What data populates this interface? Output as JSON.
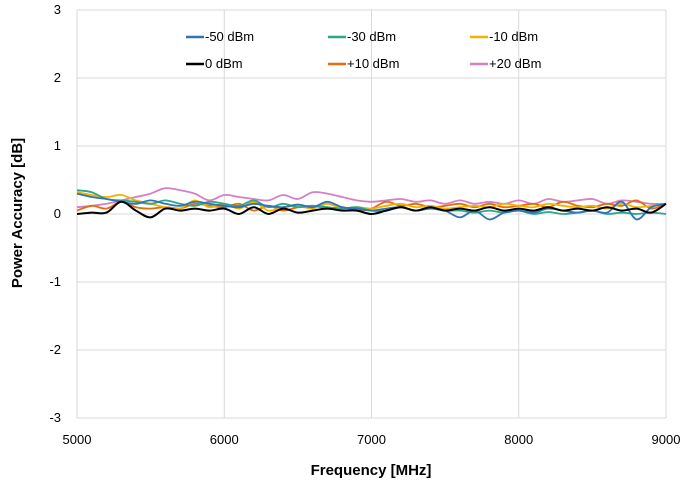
{
  "chart_data": {
    "type": "line",
    "xlabel": "Frequency [MHz]",
    "ylabel": "Power Accuracy [dB]",
    "xlim": [
      5000,
      9000
    ],
    "ylim": [
      -3,
      3
    ],
    "x_ticks": [
      "5000",
      "6000",
      "7000",
      "8000",
      "9000"
    ],
    "y_ticks": [
      "3",
      "2",
      "1",
      "0",
      "-1",
      "-2",
      "-3"
    ],
    "x_tick_values": [
      5000,
      6000,
      7000,
      8000,
      9000
    ],
    "y_tick_values": [
      3,
      2,
      1,
      0,
      -1,
      -2,
      -3
    ],
    "grid": {
      "x": true,
      "y": true
    },
    "legend_position": "top",
    "x": [
      5000,
      5100,
      5200,
      5300,
      5400,
      5500,
      5600,
      5700,
      5800,
      5900,
      6000,
      6100,
      6200,
      6300,
      6400,
      6500,
      6600,
      6700,
      6800,
      6900,
      7000,
      7100,
      7200,
      7300,
      7400,
      7500,
      7600,
      7700,
      7800,
      7900,
      8000,
      8100,
      8200,
      8300,
      8400,
      8500,
      8600,
      8700,
      8800,
      8900,
      9000
    ],
    "series": [
      {
        "name": "-50 dBm",
        "color": "#2e75b6",
        "values": [
          0.3,
          0.25,
          0.22,
          0.18,
          0.15,
          0.2,
          0.15,
          0.12,
          0.18,
          0.15,
          0.12,
          0.1,
          0.15,
          0.12,
          0.1,
          0.14,
          0.1,
          0.18,
          0.1,
          0.08,
          0.05,
          0.08,
          0.1,
          0.05,
          0.08,
          0.05,
          -0.05,
          0.05,
          -0.08,
          0.02,
          0.05,
          0.02,
          0.08,
          0.05,
          0.02,
          0.05,
          0.02,
          0.18,
          -0.08,
          0.1,
          0.15
        ]
      },
      {
        "name": "-30 dBm",
        "color": "#2ca58d",
        "values": [
          0.35,
          0.32,
          0.22,
          0.2,
          0.18,
          0.15,
          0.2,
          0.15,
          0.12,
          0.18,
          0.15,
          0.12,
          0.2,
          0.1,
          0.15,
          0.1,
          0.12,
          0.1,
          0.08,
          0.1,
          0.05,
          0.05,
          0.1,
          0.05,
          0.08,
          0.05,
          0.05,
          0.02,
          0.05,
          0.02,
          0.05,
          0.0,
          0.03,
          0.0,
          0.02,
          0.05,
          0.0,
          0.02,
          0.0,
          0.02,
          0.0
        ]
      },
      {
        "name": "-10 dBm",
        "color": "#f0b400",
        "values": [
          0.32,
          0.28,
          0.25,
          0.28,
          0.2,
          0.15,
          0.1,
          0.08,
          0.2,
          0.1,
          0.15,
          0.08,
          0.18,
          0.05,
          0.1,
          0.12,
          0.08,
          0.15,
          0.08,
          0.1,
          0.08,
          0.12,
          0.15,
          0.1,
          0.12,
          0.08,
          0.1,
          0.12,
          0.1,
          0.15,
          0.12,
          0.1,
          0.15,
          0.12,
          0.1,
          0.12,
          0.08,
          0.15,
          0.1,
          0.12,
          0.15
        ]
      },
      {
        "name": "0 dBm",
        "color": "#000000",
        "values": [
          0.0,
          0.02,
          0.02,
          0.18,
          0.05,
          -0.05,
          0.08,
          0.05,
          0.08,
          0.05,
          0.08,
          0.0,
          0.1,
          0.0,
          0.08,
          0.02,
          0.05,
          0.08,
          0.05,
          0.05,
          0.0,
          0.05,
          0.1,
          0.05,
          0.1,
          0.05,
          0.08,
          0.05,
          0.1,
          0.05,
          0.08,
          0.05,
          0.1,
          0.05,
          0.08,
          0.05,
          0.1,
          0.05,
          0.08,
          0.02,
          0.15
        ]
      },
      {
        "name": "+10 dBm",
        "color": "#e46c0a",
        "values": [
          0.05,
          0.12,
          0.08,
          0.18,
          0.1,
          0.08,
          0.1,
          0.08,
          0.15,
          0.12,
          0.1,
          0.15,
          0.05,
          0.12,
          0.05,
          0.1,
          0.12,
          0.08,
          0.1,
          0.05,
          0.08,
          0.18,
          0.12,
          0.15,
          0.1,
          0.12,
          0.15,
          0.1,
          0.15,
          0.1,
          0.12,
          0.15,
          0.1,
          0.18,
          0.12,
          0.1,
          0.15,
          0.12,
          0.2,
          0.08,
          0.15
        ]
      },
      {
        "name": "+20 dBm",
        "color": "#d67fc5",
        "values": [
          0.1,
          0.12,
          0.15,
          0.2,
          0.25,
          0.3,
          0.38,
          0.35,
          0.3,
          0.2,
          0.28,
          0.25,
          0.22,
          0.2,
          0.28,
          0.22,
          0.32,
          0.3,
          0.25,
          0.2,
          0.18,
          0.2,
          0.22,
          0.18,
          0.2,
          0.15,
          0.2,
          0.15,
          0.18,
          0.15,
          0.2,
          0.15,
          0.22,
          0.18,
          0.2,
          0.22,
          0.15,
          0.2,
          0.18,
          0.15,
          0.15
        ]
      }
    ]
  }
}
